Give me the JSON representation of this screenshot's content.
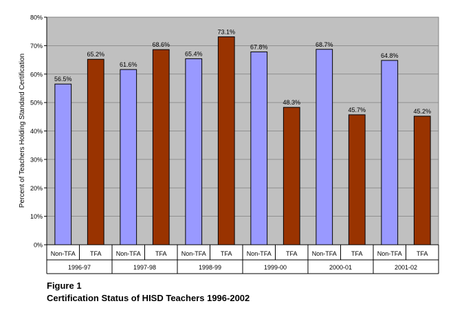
{
  "chart_data": {
    "type": "bar",
    "groups": [
      "1996-97",
      "1997-98",
      "1998-99",
      "1999-00",
      "2000-01",
      "2001-02"
    ],
    "subcategories": [
      "Non-TFA",
      "TFA"
    ],
    "series": [
      {
        "name": "Non-TFA",
        "values": [
          56.5,
          61.6,
          65.4,
          67.8,
          68.7,
          64.8
        ],
        "color": "#9999ff"
      },
      {
        "name": "TFA",
        "values": [
          65.2,
          68.6,
          73.1,
          48.3,
          45.7,
          45.2
        ],
        "color": "#993300"
      }
    ],
    "ylabel": "Percent of Teachers Holding Standard Certification",
    "ylim": [
      0,
      80
    ],
    "yticks": [
      0,
      10,
      20,
      30,
      40,
      50,
      60,
      70,
      80
    ],
    "value_suffix": "%",
    "grid": true,
    "plot_background": "#c0c0c0"
  },
  "caption": {
    "figure_number": "Figure 1",
    "figure_title": "Certification Status of HISD Teachers 1996-2002"
  }
}
